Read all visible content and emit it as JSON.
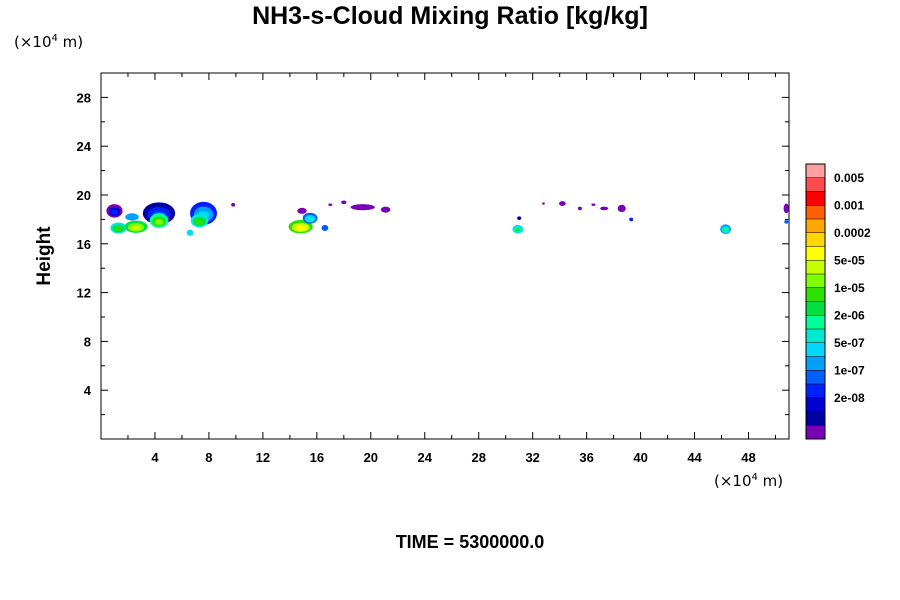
{
  "chart_data": {
    "type": "heatmap",
    "title": "NH3-s-Cloud Mixing Ratio [kg/kg]",
    "ylabel": "Height",
    "xunit": "(×10",
    "unit_exp": "4",
    "unit_tail": " m)",
    "footer": "TIME = 5300000.0",
    "xlim": [
      0,
      51
    ],
    "ylim": [
      0,
      30
    ],
    "xticks": [
      4,
      8,
      12,
      16,
      20,
      24,
      28,
      32,
      36,
      40,
      44,
      48
    ],
    "yticks": [
      4,
      8,
      12,
      16,
      20,
      24,
      28
    ],
    "colorbar": {
      "labels": [
        "0.005",
        "0.001",
        "0.0002",
        "5e-05",
        "1e-05",
        "2e-06",
        "5e-07",
        "1e-07",
        "2e-08"
      ],
      "colors": [
        "#ff9f9f",
        "#ff4c4c",
        "#ff0000",
        "#ff5f00",
        "#ffa500",
        "#ffd700",
        "#ffff00",
        "#c8ff00",
        "#7fff00",
        "#2ee000",
        "#00e040",
        "#00ff99",
        "#00e8d0",
        "#00d8ff",
        "#00a0ff",
        "#0060ff",
        "#0020ff",
        "#0000d0",
        "#0000a0",
        "#7a00b8"
      ]
    },
    "cloud_patches": [
      {
        "x": 1.0,
        "y": 18.7,
        "w": 1.2,
        "h": 1.1,
        "level": 16
      },
      {
        "x": 1.3,
        "y": 17.3,
        "w": 1.2,
        "h": 0.9,
        "level": 9
      },
      {
        "x": 2.6,
        "y": 17.4,
        "w": 1.7,
        "h": 1.0,
        "level": 7
      },
      {
        "x": 2.3,
        "y": 18.2,
        "w": 1.0,
        "h": 0.6,
        "level": 11
      },
      {
        "x": 4.3,
        "y": 18.5,
        "w": 2.4,
        "h": 1.8,
        "level": 15
      },
      {
        "x": 4.3,
        "y": 17.9,
        "w": 1.4,
        "h": 1.2,
        "level": 8
      },
      {
        "x": 6.6,
        "y": 16.9,
        "w": 0.5,
        "h": 0.5,
        "level": 10
      },
      {
        "x": 7.6,
        "y": 18.5,
        "w": 2.0,
        "h": 1.9,
        "level": 13
      },
      {
        "x": 7.3,
        "y": 17.9,
        "w": 1.3,
        "h": 1.1,
        "level": 9
      },
      {
        "x": 9.8,
        "y": 19.2,
        "w": 0.3,
        "h": 0.3,
        "level": 17
      },
      {
        "x": 14.8,
        "y": 17.4,
        "w": 1.8,
        "h": 1.1,
        "level": 6
      },
      {
        "x": 15.5,
        "y": 18.1,
        "w": 1.1,
        "h": 0.9,
        "level": 12
      },
      {
        "x": 14.9,
        "y": 18.7,
        "w": 0.7,
        "h": 0.5,
        "level": 16
      },
      {
        "x": 16.6,
        "y": 17.3,
        "w": 0.5,
        "h": 0.5,
        "level": 12
      },
      {
        "x": 17.0,
        "y": 19.2,
        "w": 0.3,
        "h": 0.2,
        "level": 19
      },
      {
        "x": 18.0,
        "y": 19.4,
        "w": 0.4,
        "h": 0.3,
        "level": 17
      },
      {
        "x": 19.4,
        "y": 19.0,
        "w": 1.8,
        "h": 0.5,
        "level": 17
      },
      {
        "x": 21.1,
        "y": 18.8,
        "w": 0.7,
        "h": 0.5,
        "level": 17
      },
      {
        "x": 30.9,
        "y": 17.2,
        "w": 0.8,
        "h": 0.7,
        "level": 10
      },
      {
        "x": 31.0,
        "y": 18.1,
        "w": 0.3,
        "h": 0.3,
        "level": 15
      },
      {
        "x": 32.8,
        "y": 19.3,
        "w": 0.2,
        "h": 0.2,
        "level": 19
      },
      {
        "x": 34.2,
        "y": 19.3,
        "w": 0.5,
        "h": 0.4,
        "level": 17
      },
      {
        "x": 35.5,
        "y": 18.9,
        "w": 0.3,
        "h": 0.3,
        "level": 17
      },
      {
        "x": 36.5,
        "y": 19.2,
        "w": 0.3,
        "h": 0.2,
        "level": 19
      },
      {
        "x": 37.3,
        "y": 18.9,
        "w": 0.6,
        "h": 0.3,
        "level": 19
      },
      {
        "x": 38.6,
        "y": 18.9,
        "w": 0.6,
        "h": 0.6,
        "level": 17
      },
      {
        "x": 39.3,
        "y": 18.0,
        "w": 0.3,
        "h": 0.3,
        "level": 13
      },
      {
        "x": 46.3,
        "y": 17.2,
        "w": 0.8,
        "h": 0.8,
        "level": 11
      },
      {
        "x": 50.8,
        "y": 18.9,
        "w": 0.4,
        "h": 0.8,
        "level": 16
      },
      {
        "x": 50.8,
        "y": 17.8,
        "w": 0.3,
        "h": 0.3,
        "level": 12
      }
    ]
  }
}
